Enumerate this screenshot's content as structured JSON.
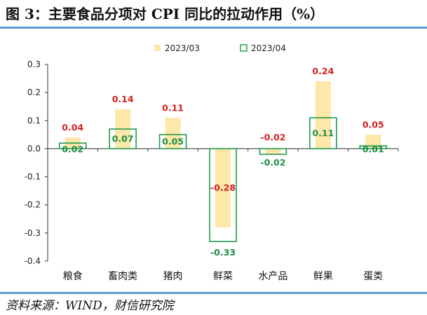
{
  "title": "图 3：主要食品分项对 CPI 同比的拉动作用（%）",
  "source": "资料来源：WIND，财信研究院",
  "chart_data": {
    "type": "bar",
    "categories": [
      "粮食",
      "畜肉类",
      "猪肉",
      "鲜菜",
      "水产品",
      "鲜果",
      "蛋类"
    ],
    "series": [
      {
        "name": "2023/03",
        "values": [
          0.04,
          0.14,
          0.11,
          -0.28,
          -0.02,
          0.24,
          0.05
        ]
      },
      {
        "name": "2023/04",
        "values": [
          0.02,
          0.07,
          0.05,
          -0.33,
          -0.02,
          0.11,
          0.01
        ]
      }
    ],
    "value_labels": [
      [
        "0.04",
        "0.14",
        "0.11",
        "-0.28",
        "-0.02",
        "0.24",
        "0.05"
      ],
      [
        "0.02",
        "0.07",
        "0.05",
        "-0.33",
        "-0.02",
        "0.11",
        "0.01"
      ]
    ],
    "ylim": [
      -0.4,
      0.3
    ],
    "yticks": [
      "0.3",
      "0.2",
      "0.1",
      "0.0",
      "-0.1",
      "-0.2",
      "-0.3",
      "-0.4"
    ],
    "ytick_values": [
      0.3,
      0.2,
      0.1,
      0.0,
      -0.1,
      -0.2,
      -0.3,
      -0.4
    ],
    "legend_position": "top-center",
    "grid": false,
    "colors": {
      "series1_fill": "#fde7a9",
      "series2_stroke": "#1e9a4a",
      "series1_label": "#d42020",
      "series2_label": "#1e8c45",
      "axis": "#333333"
    }
  }
}
